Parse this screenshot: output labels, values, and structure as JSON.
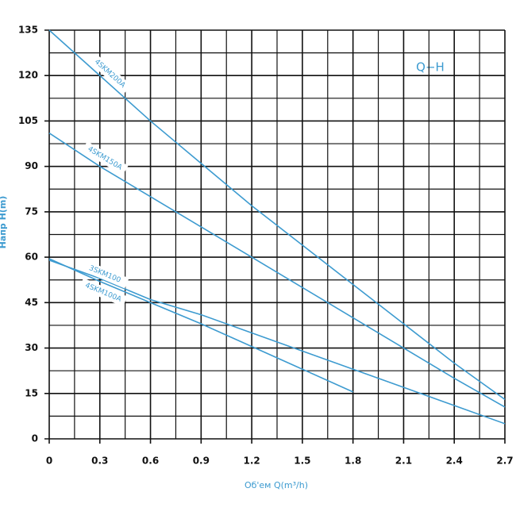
{
  "chart_data": {
    "type": "line",
    "title": "Q−H",
    "x_label": "Об'ем Q(m³/h)",
    "y_label": "Напр Н(m)",
    "xlim": [
      0,
      2.7
    ],
    "ylim": [
      0,
      135
    ],
    "xticks": [
      0,
      0.3,
      0.6,
      0.9,
      1.2,
      1.5,
      1.8,
      2.1,
      2.4,
      2.7
    ],
    "yticks": [
      0,
      15,
      30,
      45,
      60,
      75,
      90,
      105,
      120,
      135
    ],
    "grid": true,
    "series": [
      {
        "name": "4SKM200A",
        "color": "#3d9bd0",
        "x": [
          0,
          0.3,
          0.6,
          0.9,
          1.2,
          1.5,
          1.8,
          2.1,
          2.4,
          2.7
        ],
        "values": [
          135,
          120,
          105,
          91,
          77,
          64,
          51,
          38,
          25,
          13
        ]
      },
      {
        "name": "4SKM150A",
        "color": "#3d9bd0",
        "x": [
          0,
          0.3,
          0.6,
          0.9,
          1.2,
          1.5,
          1.8,
          2.1,
          2.4,
          2.7
        ],
        "values": [
          101,
          90,
          80,
          70,
          60,
          50,
          40,
          30,
          20,
          10.5
        ]
      },
      {
        "name": "3SKM100",
        "color": "#3d9bd0",
        "x": [
          0,
          0.3,
          0.6,
          0.9,
          1.2,
          1.5,
          1.8,
          2.1,
          2.4,
          2.7
        ],
        "values": [
          59,
          53,
          46,
          41,
          35,
          29,
          23,
          17,
          11,
          5
        ]
      },
      {
        "name": "4SKM100A",
        "color": "#3d9bd0",
        "x": [
          0,
          0.3,
          0.6,
          0.9,
          1.2,
          1.5,
          1.8
        ],
        "values": [
          59.5,
          52,
          45,
          38,
          30.5,
          23,
          15.5
        ]
      }
    ]
  }
}
